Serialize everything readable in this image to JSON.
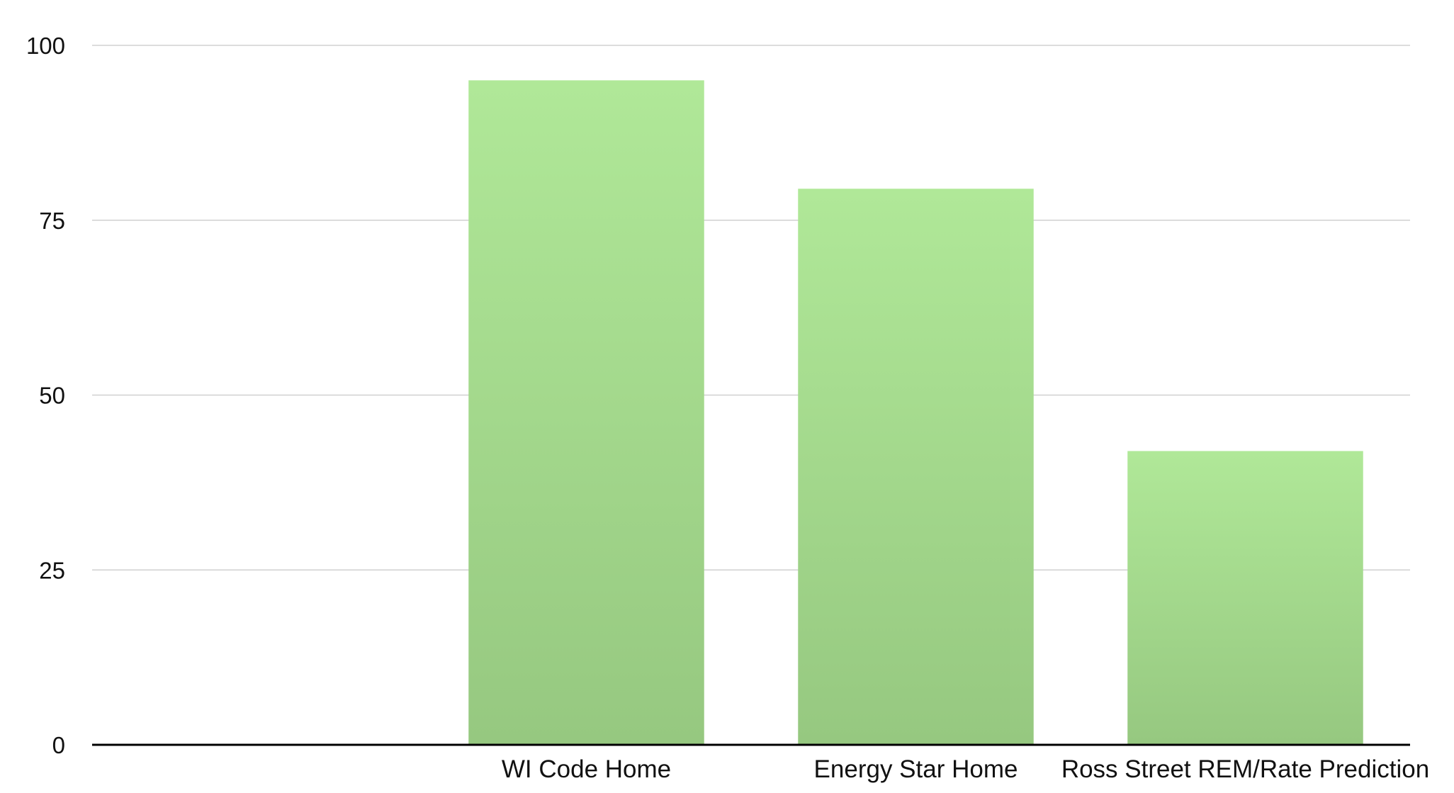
{
  "chart_data": {
    "type": "bar",
    "title": "",
    "xlabel": "",
    "ylabel": "",
    "categories": [
      "",
      "WI Code Home",
      "Energy Star Home",
      "Ross Street REM/Rate Prediction"
    ],
    "values": [
      null,
      95,
      79.5,
      42
    ],
    "ylim": [
      0,
      100
    ],
    "yticks": [
      0,
      25,
      50,
      75,
      100
    ],
    "grid": true,
    "legend": "none",
    "colors": {
      "bar_top": "#b0e898",
      "bar_bottom": "#96c880",
      "gridline": "#d0d0d0",
      "axis": "#000000",
      "text": "#111111"
    }
  }
}
